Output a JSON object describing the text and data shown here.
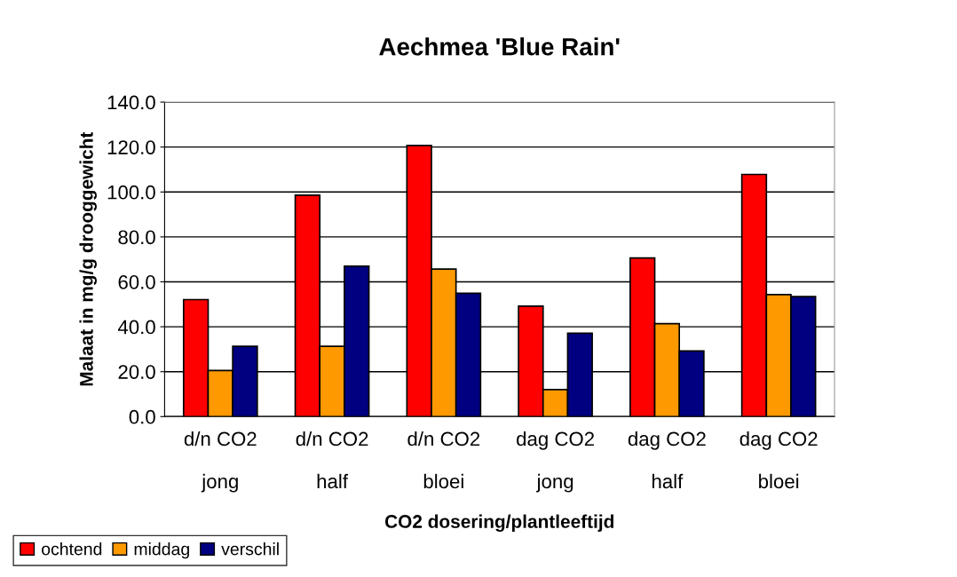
{
  "chart_data": {
    "type": "bar",
    "title": "Aechmea 'Blue Rain'",
    "xlabel": "CO2 dosering/plantleeftijd",
    "ylabel": "Malaat in mg/g drooggewicht",
    "categories": [
      "d/n CO2\n\njong",
      "d/n CO2\n\nhalf",
      "d/n CO2\n\nbloei",
      "dag CO2\n\njong",
      "dag CO2\n\nhalf",
      "dag CO2\n\nbloei"
    ],
    "series": [
      {
        "name": "ochtend",
        "color": "#ff0000",
        "values": [
          52.1,
          98.6,
          120.7,
          49.2,
          70.6,
          107.8
        ]
      },
      {
        "name": "middag",
        "color": "#ff9900",
        "values": [
          20.5,
          31.3,
          65.7,
          12.0,
          41.4,
          54.3
        ]
      },
      {
        "name": "verschil",
        "color": "#000080",
        "values": [
          31.3,
          67.0,
          54.9,
          37.1,
          29.2,
          53.4
        ]
      }
    ],
    "ylim": [
      0,
      140
    ],
    "yticks": [
      {
        "value": 0,
        "label": "0.0"
      },
      {
        "value": 20,
        "label": "20.0"
      },
      {
        "value": 40,
        "label": "40.0"
      },
      {
        "value": 60,
        "label": "60.0"
      },
      {
        "value": 80,
        "label": "80.0"
      },
      {
        "value": 100,
        "label": "100.0"
      },
      {
        "value": 120,
        "label": "120.0"
      },
      {
        "value": 140,
        "label": "140.0"
      }
    ],
    "grid": "y",
    "legend": "bottom left"
  }
}
